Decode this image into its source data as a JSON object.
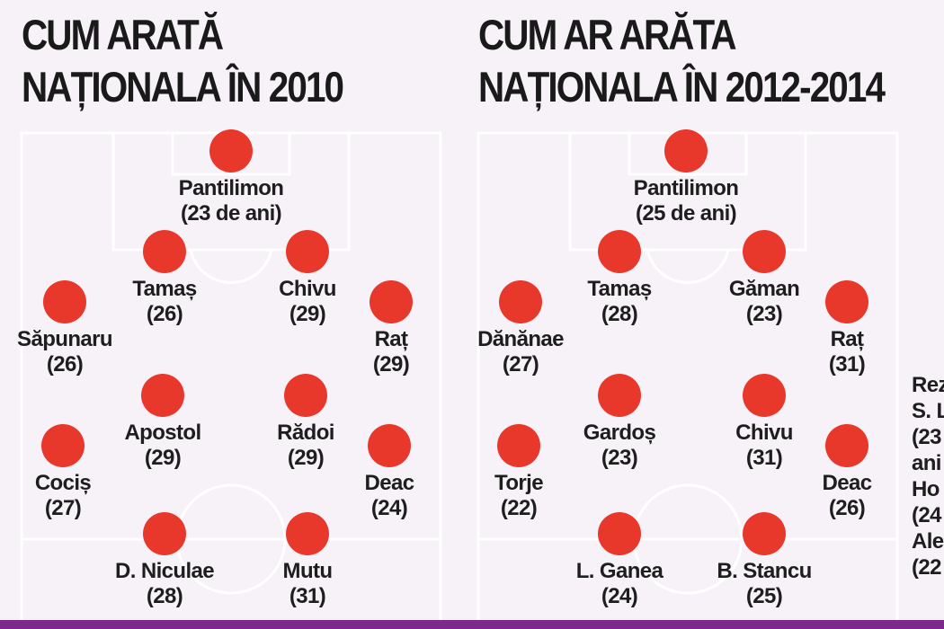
{
  "panels": [
    {
      "title_line1": "CUM ARATĂ",
      "title_line2": "NAȚIONALA ÎN 2010",
      "players": [
        {
          "name": "Pantilimon",
          "age": "(23 de ani)"
        },
        {
          "name": "Tamaș",
          "age": "(26)"
        },
        {
          "name": "Chivu",
          "age": "(29)"
        },
        {
          "name": "Săpunaru",
          "age": "(26)"
        },
        {
          "name": "Raț",
          "age": "(29)"
        },
        {
          "name": "Apostol",
          "age": "(29)"
        },
        {
          "name": "Rădoi",
          "age": "(29)"
        },
        {
          "name": "Cociș",
          "age": "(27)"
        },
        {
          "name": "Deac",
          "age": "(24)"
        },
        {
          "name": "D. Niculae",
          "age": "(28)"
        },
        {
          "name": "Mutu",
          "age": "(31)"
        }
      ]
    },
    {
      "title_line1": "CUM AR ARĂTA",
      "title_line2": "NAȚIONALA ÎN 2012-2014",
      "players": [
        {
          "name": "Pantilimon",
          "age": "(25 de ani)"
        },
        {
          "name": "Tamaș",
          "age": "(28)"
        },
        {
          "name": "Găman",
          "age": "(23)"
        },
        {
          "name": "Dănănae",
          "age": "(27)"
        },
        {
          "name": "Raț",
          "age": "(31)"
        },
        {
          "name": "Gardoș",
          "age": "(23)"
        },
        {
          "name": "Chivu",
          "age": "(31)"
        },
        {
          "name": "Torje",
          "age": "(22)"
        },
        {
          "name": "Deac",
          "age": "(26)"
        },
        {
          "name": "L. Ganea",
          "age": "(24)"
        },
        {
          "name": "B. Stancu",
          "age": "(25)"
        }
      ]
    }
  ],
  "reserves": [
    "Rez",
    "S. L",
    "(23",
    "ani",
    "Ho",
    "(24",
    "Ale",
    "(22"
  ],
  "colors": {
    "player_dot": "#e8382b",
    "pitch_line": "#ffffff",
    "accent_bar": "#7b2a8c"
  }
}
